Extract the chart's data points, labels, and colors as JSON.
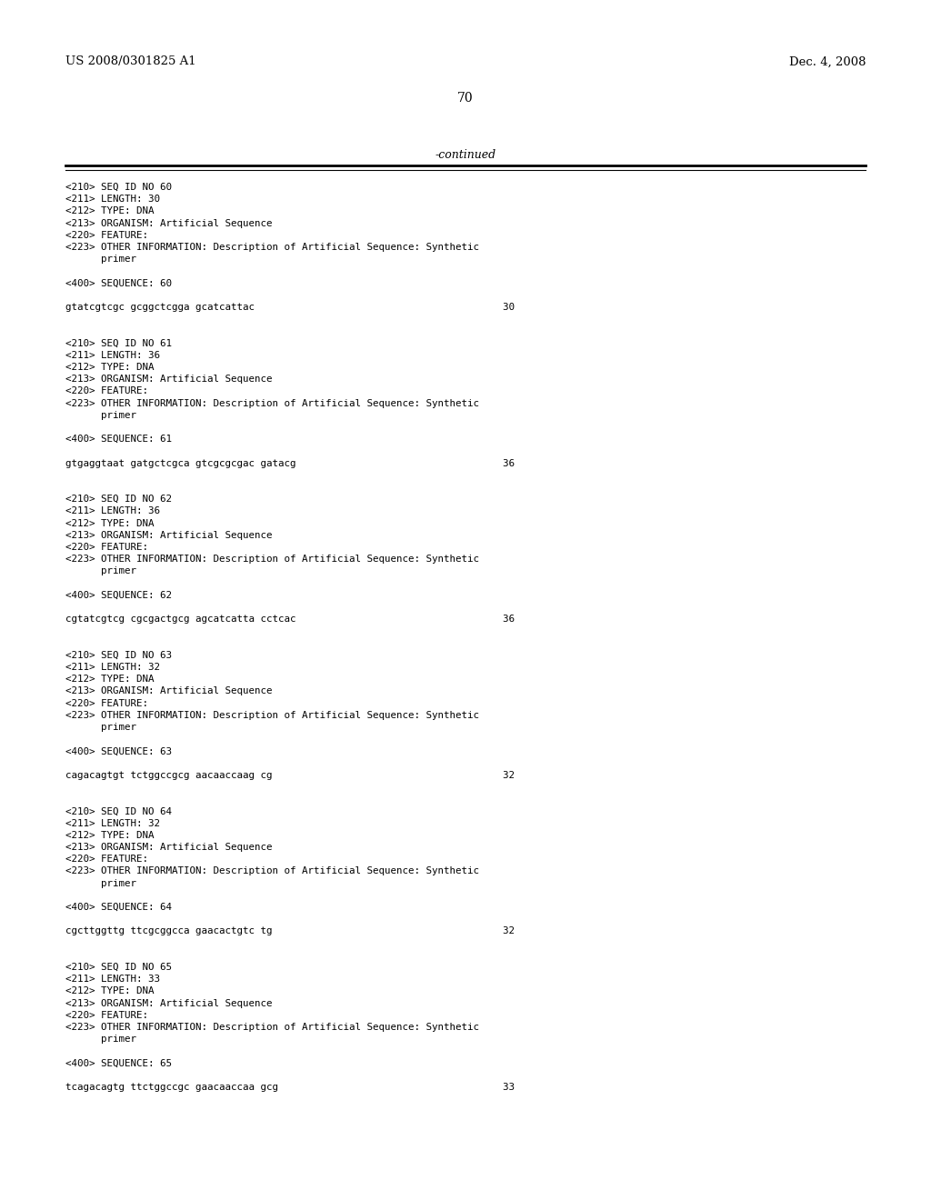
{
  "header_left": "US 2008/0301825 A1",
  "header_right": "Dec. 4, 2008",
  "page_number": "70",
  "continued_text": "-continued",
  "background_color": "#ffffff",
  "text_color": "#000000",
  "font_size_header": 9.5,
  "font_size_body": 7.8,
  "font_size_page": 10,
  "font_size_continued": 9,
  "content": [
    "<210> SEQ ID NO 60",
    "<211> LENGTH: 30",
    "<212> TYPE: DNA",
    "<213> ORGANISM: Artificial Sequence",
    "<220> FEATURE:",
    "<223> OTHER INFORMATION: Description of Artificial Sequence: Synthetic",
    "      primer",
    "",
    "<400> SEQUENCE: 60",
    "",
    "gtatcgtcgc gcggctcgga gcatcattac                                          30",
    "",
    "",
    "<210> SEQ ID NO 61",
    "<211> LENGTH: 36",
    "<212> TYPE: DNA",
    "<213> ORGANISM: Artificial Sequence",
    "<220> FEATURE:",
    "<223> OTHER INFORMATION: Description of Artificial Sequence: Synthetic",
    "      primer",
    "",
    "<400> SEQUENCE: 61",
    "",
    "gtgaggtaat gatgctcgca gtcgcgcgac gatacg                                   36",
    "",
    "",
    "<210> SEQ ID NO 62",
    "<211> LENGTH: 36",
    "<212> TYPE: DNA",
    "<213> ORGANISM: Artificial Sequence",
    "<220> FEATURE:",
    "<223> OTHER INFORMATION: Description of Artificial Sequence: Synthetic",
    "      primer",
    "",
    "<400> SEQUENCE: 62",
    "",
    "cgtatcgtcg cgcgactgcg agcatcatta cctcac                                   36",
    "",
    "",
    "<210> SEQ ID NO 63",
    "<211> LENGTH: 32",
    "<212> TYPE: DNA",
    "<213> ORGANISM: Artificial Sequence",
    "<220> FEATURE:",
    "<223> OTHER INFORMATION: Description of Artificial Sequence: Synthetic",
    "      primer",
    "",
    "<400> SEQUENCE: 63",
    "",
    "cagacagtgt tctggccgcg aacaaccaag cg                                       32",
    "",
    "",
    "<210> SEQ ID NO 64",
    "<211> LENGTH: 32",
    "<212> TYPE: DNA",
    "<213> ORGANISM: Artificial Sequence",
    "<220> FEATURE:",
    "<223> OTHER INFORMATION: Description of Artificial Sequence: Synthetic",
    "      primer",
    "",
    "<400> SEQUENCE: 64",
    "",
    "cgcttggttg ttcgcggcca gaacactgtc tg                                       32",
    "",
    "",
    "<210> SEQ ID NO 65",
    "<211> LENGTH: 33",
    "<212> TYPE: DNA",
    "<213> ORGANISM: Artificial Sequence",
    "<220> FEATURE:",
    "<223> OTHER INFORMATION: Description of Artificial Sequence: Synthetic",
    "      primer",
    "",
    "<400> SEQUENCE: 65",
    "",
    "tcagacagtg ttctggccgc gaacaaccaa gcg                                      33"
  ]
}
